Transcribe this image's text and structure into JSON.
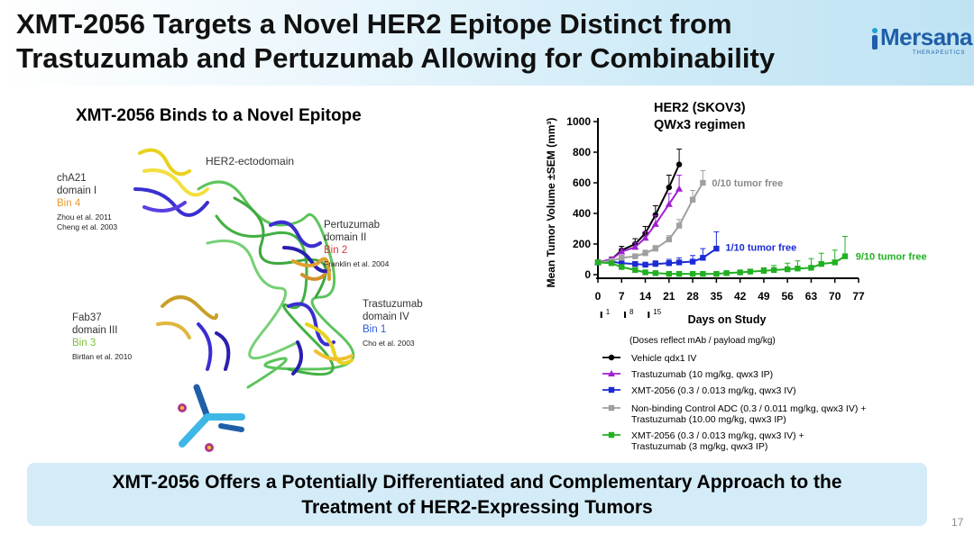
{
  "slide": {
    "title_line1": "XMT-2056 Targets a Novel HER2 Epitope Distinct from",
    "title_line2": "Trastuzumab and Pertuzumab Allowing for Combinability",
    "page_number": "17",
    "brand_color": "#1f5fa8"
  },
  "logo": {
    "name": "Mersana",
    "sub": "THERAPEUTICS"
  },
  "left_panel": {
    "title": "XMT-2056 Binds to a Novel Epitope",
    "ectodomain_label": "HER2-ectodomain",
    "labels": [
      {
        "name_line1": "chA21",
        "name_line2": "domain I",
        "bin": "Bin 4",
        "ref1": "Zhou et al. 2011",
        "ref2": "Cheng et al. 2003"
      },
      {
        "name_line1": "Pertuzumab",
        "name_line2": "domain II",
        "bin": "Bin 2",
        "ref1": "Franklin et al. 2004"
      },
      {
        "name_line1": "Fab37",
        "name_line2": "domain III",
        "bin": "Bin 3",
        "ref1": "Birtlan et al. 2010"
      },
      {
        "name_line1": "Trastuzumab",
        "name_line2": "domain IV",
        "bin": "Bin 1",
        "ref1": "Cho et al. 2003"
      }
    ]
  },
  "chart_header": {
    "line1": "HER2 (SKOV3)",
    "line2": "QWx3 regimen"
  },
  "chart_data": {
    "type": "line",
    "ylabel": "Mean Tumor Volume ±SEM (mm³)",
    "xlabel": "Days on Study",
    "xlim": [
      0,
      77
    ],
    "ylim": [
      0,
      1000
    ],
    "x_ticks": [
      "0",
      "7",
      "14",
      "21",
      "28",
      "35",
      "42",
      "49",
      "56",
      "63",
      "70",
      "77"
    ],
    "y_ticks": [
      "0",
      "200",
      "400",
      "600",
      "800",
      "1000"
    ],
    "dose_days": [
      1,
      8,
      15
    ],
    "dose_labels": [
      "1",
      "8",
      "15"
    ],
    "series": [
      {
        "name": "Vehicle qdx1 IV",
        "color": "#000000",
        "marker": "circle",
        "x": [
          0,
          4,
          7,
          11,
          14,
          17,
          21,
          24
        ],
        "y": [
          80,
          100,
          160,
          200,
          270,
          390,
          570,
          720
        ],
        "err": [
          10,
          15,
          25,
          35,
          45,
          60,
          80,
          100
        ]
      },
      {
        "name": "Trastuzumab (10 mg/kg, qwx3 IP)",
        "color": "#a020d0",
        "marker": "triangle",
        "x": [
          0,
          4,
          7,
          11,
          14,
          17,
          21,
          24
        ],
        "y": [
          80,
          100,
          150,
          180,
          240,
          330,
          460,
          560
        ],
        "err": [
          10,
          15,
          20,
          30,
          40,
          55,
          70,
          90
        ]
      },
      {
        "name": "XMT-2056 (0.3 / 0.013 mg/kg, qwx3 IV)",
        "color": "#1b2bd6",
        "marker": "square",
        "x": [
          0,
          4,
          7,
          11,
          14,
          17,
          21,
          24,
          28,
          31,
          35
        ],
        "y": [
          80,
          85,
          75,
          70,
          65,
          70,
          75,
          80,
          85,
          110,
          170
        ],
        "err": [
          10,
          15,
          15,
          15,
          15,
          20,
          25,
          30,
          40,
          60,
          110
        ]
      },
      {
        "name": "Non-binding Control ADC (0.3 / 0.011 mg/kg, qwx3 IV) + Trastuzumab (10.00 mg/kg, qwx3 IP)",
        "color": "#a0a0a0",
        "marker": "square",
        "x": [
          0,
          4,
          7,
          11,
          14,
          17,
          21,
          24,
          28,
          31
        ],
        "y": [
          80,
          90,
          110,
          120,
          140,
          170,
          230,
          320,
          490,
          600
        ],
        "err": [
          10,
          10,
          15,
          15,
          20,
          20,
          25,
          40,
          60,
          80
        ]
      },
      {
        "name": "XMT-2056 (0.3 / 0.013 mg/kg, qwx3 IV) + Trastuzumab (3 mg/kg, qwx3 IP)",
        "color": "#22b022",
        "marker": "square",
        "x": [
          0,
          4,
          7,
          11,
          14,
          17,
          21,
          24,
          28,
          31,
          35,
          38,
          42,
          45,
          49,
          52,
          56,
          59,
          63,
          66,
          70,
          73
        ],
        "y": [
          80,
          75,
          50,
          30,
          15,
          10,
          5,
          5,
          5,
          5,
          5,
          10,
          15,
          20,
          25,
          30,
          35,
          40,
          45,
          70,
          80,
          120
        ],
        "err": [
          10,
          10,
          10,
          8,
          5,
          5,
          5,
          5,
          5,
          5,
          5,
          8,
          10,
          15,
          20,
          30,
          40,
          50,
          60,
          70,
          80,
          130
        ]
      }
    ],
    "annotations": [
      {
        "text": "0/10 tumor free",
        "color": "#8a8a8a"
      },
      {
        "text": "1/10 tumor free",
        "color": "#1b2bd6"
      },
      {
        "text": "9/10 tumor free",
        "color": "#22b022"
      }
    ],
    "legend_note": "(Doses reflect mAb / payload mg/kg)",
    "legend_items": [
      {
        "line1": "Vehicle qdx1 IV",
        "line2": ""
      },
      {
        "line1": "Trastuzumab (10 mg/kg, qwx3 IP)",
        "line2": ""
      },
      {
        "line1": "XMT-2056 (0.3 / 0.013 mg/kg, qwx3 IV)",
        "line2": ""
      },
      {
        "line1": "Non-binding Control ADC (0.3 / 0.011 mg/kg, qwx3 IV) +",
        "line2": "Trastuzumab (10.00 mg/kg, qwx3 IP)"
      },
      {
        "line1": "XMT-2056 (0.3 / 0.013 mg/kg, qwx3 IV) +",
        "line2": "Trastuzumab (3 mg/kg, qwx3 IP)"
      }
    ],
    "legend_placement": "below"
  },
  "footer": {
    "line1": "XMT-2056 Offers a Potentially Differentiated and Complementary Approach to the",
    "line2": "Treatment of HER2-Expressing Tumors"
  }
}
